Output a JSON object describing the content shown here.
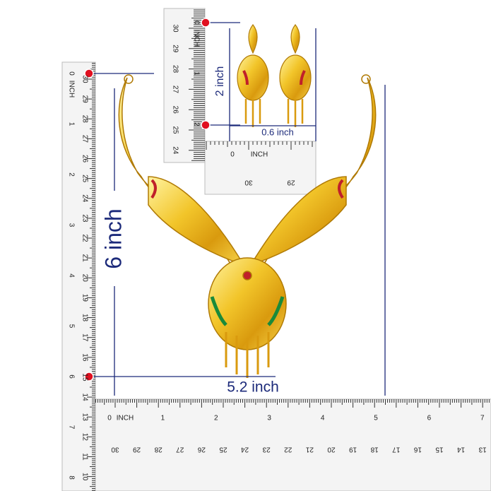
{
  "annotations": {
    "necklace_height": "6 inch",
    "necklace_width": "5.2 inch",
    "earring_height": "2 inch",
    "earring_width": "0.6 inch"
  },
  "rulers": {
    "left": {
      "unit": "INCH",
      "inch_labels": [
        "0",
        "1",
        "2",
        "3",
        "4",
        "5",
        "6",
        "7",
        "8"
      ],
      "cm_labels": [
        "30",
        "29",
        "28",
        "27",
        "26",
        "25",
        "24",
        "23",
        "22",
        "21",
        "20",
        "19",
        "18",
        "17",
        "16",
        "15",
        "14",
        "13",
        "12",
        "11",
        "10"
      ]
    },
    "bottom": {
      "unit": "INCH",
      "inch_labels": [
        "0",
        "1",
        "2",
        "3",
        "4",
        "5",
        "6",
        "7"
      ],
      "cm_labels": [
        "30",
        "29",
        "28",
        "27",
        "26",
        "25",
        "24",
        "23",
        "22",
        "21",
        "20",
        "19",
        "18",
        "17",
        "16",
        "15",
        "14",
        "13"
      ]
    },
    "earring_vertical": {
      "unit": "INCH",
      "inch_labels": [
        "0",
        "1",
        "2"
      ],
      "cm_labels": [
        "30",
        "29",
        "28",
        "27",
        "26",
        "25",
        "24"
      ]
    },
    "earring_horizontal": {
      "unit": "INCH",
      "inch_labels": [
        "0"
      ],
      "cm_labels": [
        "30",
        "29"
      ]
    }
  }
}
